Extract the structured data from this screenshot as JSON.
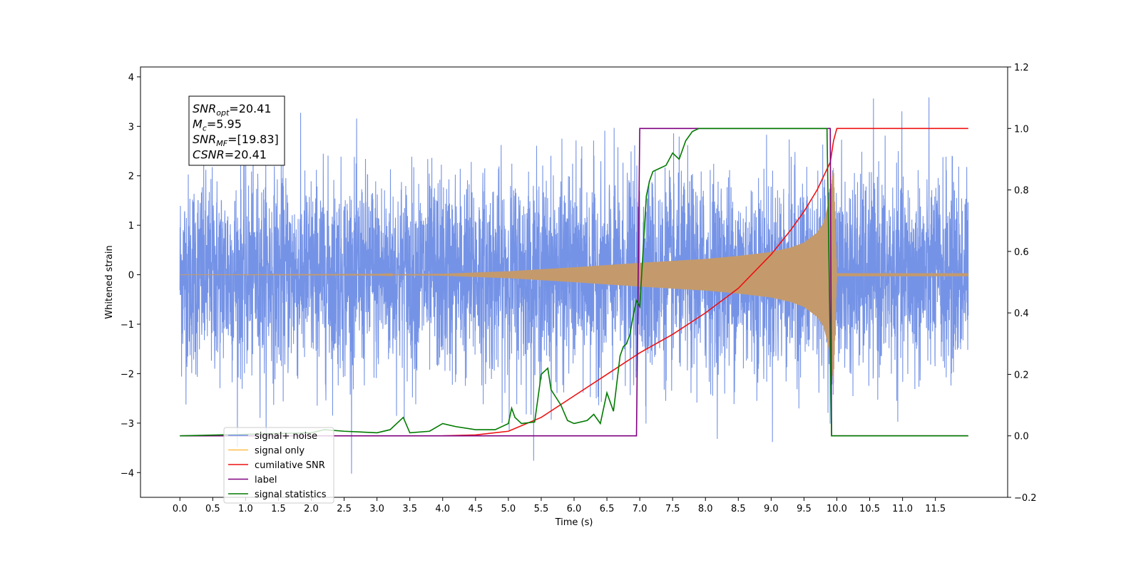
{
  "chart_data": {
    "type": "line",
    "xlabel": "Time (s)",
    "ylabel": "Whitened strain",
    "xlim": [
      -0.6,
      12.6
    ],
    "ylim": [
      -4.5,
      4.2
    ],
    "y2lim": [
      -0.2,
      1.2
    ],
    "x_ticks": [
      "0.0",
      "0.5",
      "1.0",
      "1.5",
      "2.0",
      "2.5",
      "3.0",
      "3.5",
      "4.0",
      "4.5",
      "5.0",
      "5.5",
      "6.0",
      "6.5",
      "7.0",
      "7.5",
      "8.0",
      "8.5",
      "9.0",
      "9.5",
      "10.0",
      "10.5",
      "11.0",
      "11.5"
    ],
    "y_ticks": [
      "4",
      "3",
      "2",
      "1",
      "0",
      "−1",
      "−2",
      "−3",
      "−4"
    ],
    "y2_ticks": [
      "1.2",
      "1.0",
      "0.8",
      "0.6",
      "0.4",
      "0.2",
      "0.0",
      "−0.2"
    ],
    "grid": false,
    "info_box": {
      "lines": [
        {
          "label": "SNR",
          "sub": "opt",
          "value": "=20.41"
        },
        {
          "label": "M",
          "sub": "c",
          "value": "=5.95"
        },
        {
          "label": "SNR",
          "sub": "MF",
          "value": "=[19.83]"
        },
        {
          "label": "CSNR",
          "sub": "",
          "value": "=20.41"
        }
      ]
    },
    "legend": {
      "placement": "lower-left",
      "entries": [
        {
          "name": "signal+ noise",
          "color": "#7593e6"
        },
        {
          "name": "signal only",
          "color": "#ffbf4d"
        },
        {
          "name": "cumilative SNR",
          "color": "#ee1111"
        },
        {
          "name": "label",
          "color": "#800080"
        },
        {
          "name": "signal statistics",
          "color": "#007a00"
        }
      ]
    },
    "series": [
      {
        "name": "signal+ noise",
        "axis": "left",
        "color": "#7593e6",
        "x_range": [
          0.0,
          12.0
        ],
        "noise_sigma": 1.0,
        "ymin_observed": -4.1,
        "ymax_observed": 3.85
      },
      {
        "name": "signal only",
        "axis": "left",
        "color": "#c49a6c",
        "envelope": {
          "x": [
            0.0,
            3.0,
            4.0,
            5.0,
            6.0,
            7.0,
            8.0,
            8.5,
            9.0,
            9.3,
            9.5,
            9.7,
            9.8,
            9.9,
            9.95,
            10.0,
            12.0
          ],
          "y": [
            0.0,
            0.005,
            0.02,
            0.07,
            0.15,
            0.24,
            0.32,
            0.38,
            0.46,
            0.55,
            0.65,
            0.85,
            1.05,
            1.6,
            2.2,
            0.03,
            0.03
          ]
        }
      },
      {
        "name": "cumilative SNR",
        "axis": "right",
        "color": "#ee1111",
        "x": [
          4.0,
          4.5,
          5.0,
          5.5,
          6.0,
          6.5,
          7.0,
          7.5,
          8.0,
          8.5,
          9.0,
          9.3,
          9.5,
          9.7,
          9.9,
          9.95,
          10.0,
          12.0
        ],
        "y": [
          0.0,
          0.003,
          0.015,
          0.06,
          0.13,
          0.2,
          0.27,
          0.33,
          0.4,
          0.48,
          0.59,
          0.67,
          0.73,
          0.8,
          0.89,
          0.96,
          1.0,
          1.0
        ]
      },
      {
        "name": "label",
        "axis": "right",
        "color": "#800080",
        "x": [
          0.0,
          6.95,
          7.0,
          9.9,
          9.92,
          12.0
        ],
        "y": [
          0.0,
          0.0,
          1.0,
          1.0,
          0.0,
          0.0
        ]
      },
      {
        "name": "signal statistics",
        "axis": "right",
        "color": "#007a00",
        "x": [
          0.0,
          2.0,
          2.2,
          2.5,
          3.0,
          3.2,
          3.4,
          3.5,
          3.8,
          4.0,
          4.2,
          4.5,
          4.8,
          5.0,
          5.05,
          5.1,
          5.2,
          5.4,
          5.5,
          5.6,
          5.65,
          5.8,
          5.9,
          6.0,
          6.2,
          6.3,
          6.4,
          6.5,
          6.6,
          6.7,
          6.75,
          6.8,
          6.85,
          6.9,
          6.95,
          7.0,
          7.05,
          7.1,
          7.15,
          7.2,
          7.3,
          7.4,
          7.5,
          7.6,
          7.7,
          7.8,
          7.9,
          8.0,
          8.5,
          9.0,
          9.5,
          9.85,
          9.92,
          10.0,
          12.0
        ],
        "y": [
          0.0,
          0.01,
          0.02,
          0.015,
          0.01,
          0.02,
          0.06,
          0.01,
          0.015,
          0.04,
          0.03,
          0.02,
          0.02,
          0.04,
          0.09,
          0.06,
          0.04,
          0.045,
          0.2,
          0.22,
          0.15,
          0.1,
          0.05,
          0.04,
          0.05,
          0.07,
          0.04,
          0.14,
          0.08,
          0.26,
          0.29,
          0.3,
          0.33,
          0.39,
          0.44,
          0.42,
          0.6,
          0.78,
          0.83,
          0.86,
          0.87,
          0.88,
          0.92,
          0.9,
          0.96,
          0.99,
          1.0,
          1.0,
          1.0,
          1.0,
          1.0,
          1.0,
          0.0,
          0.0,
          0.0
        ]
      }
    ]
  }
}
